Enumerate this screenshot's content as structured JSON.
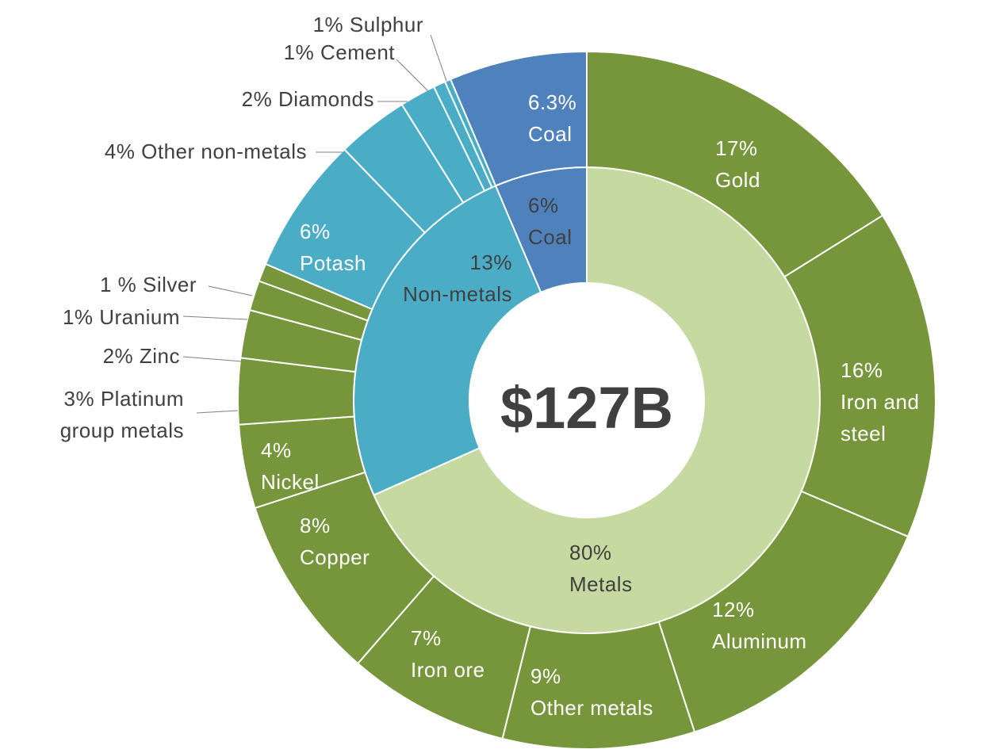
{
  "chart_data": {
    "type": "sunburst",
    "total_label": "$127B",
    "colors": {
      "metals_inner": "#c5d9a0",
      "metals_outer": "#77963b",
      "nonmetals": "#4bacc6",
      "coal": "#4f81bd",
      "separator": "#ffffff"
    },
    "inner": [
      {
        "name": "Metals",
        "value": 80,
        "label": [
          "80%",
          "Metals"
        ]
      },
      {
        "name": "Non-metals",
        "value": 13,
        "label": [
          "13%",
          "Non-metals"
        ]
      },
      {
        "name": "Coal",
        "value": 6,
        "label": [
          "6%",
          "Coal"
        ]
      }
    ],
    "outer": [
      {
        "group": "Coal",
        "name": "Coal",
        "value": 6.3,
        "label": [
          "6.3%",
          "Coal"
        ]
      },
      {
        "group": "Metals",
        "name": "Gold",
        "value": 17,
        "label": [
          "17%",
          "Gold"
        ]
      },
      {
        "group": "Metals",
        "name": "Iron and steel",
        "value": 16,
        "label": [
          "16%",
          "Iron and",
          "steel"
        ]
      },
      {
        "group": "Metals",
        "name": "Aluminum",
        "value": 12,
        "label": [
          "12%",
          "Aluminum"
        ]
      },
      {
        "group": "Metals",
        "name": "Other metals",
        "value": 9,
        "label": [
          "9%",
          "Other metals"
        ]
      },
      {
        "group": "Metals",
        "name": "Iron ore",
        "value": 7,
        "label": [
          "7%",
          "Iron ore"
        ]
      },
      {
        "group": "Metals",
        "name": "Copper",
        "value": 8,
        "label": [
          "8%",
          "Copper"
        ]
      },
      {
        "group": "Metals",
        "name": "Nickel",
        "value": 4,
        "label": [
          "4%",
          "Nickel"
        ]
      },
      {
        "group": "Metals",
        "name": "Platinum group metals",
        "value": 3,
        "label": [
          "3% Platinum",
          "group metals"
        ]
      },
      {
        "group": "Metals",
        "name": "Zinc",
        "value": 2,
        "label": [
          "2% Zinc"
        ]
      },
      {
        "group": "Metals",
        "name": "Uranium",
        "value": 1,
        "label": [
          "1% Uranium"
        ]
      },
      {
        "group": "Metals",
        "name": "Silver",
        "value": 1,
        "label": [
          "1 % Silver"
        ]
      },
      {
        "group": "Non-metals",
        "name": "Potash",
        "value": 6,
        "label": [
          "6%",
          "Potash"
        ]
      },
      {
        "group": "Non-metals",
        "name": "Other non-metals",
        "value": 4,
        "label": [
          "4% Other non-metals"
        ]
      },
      {
        "group": "Non-metals",
        "name": "Diamonds",
        "value": 2,
        "label": [
          "2% Diamonds"
        ]
      },
      {
        "group": "Non-metals",
        "name": "Cement",
        "value": 1,
        "label": [
          "1% Cement"
        ]
      },
      {
        "group": "Non-metals",
        "name": "Sulphur",
        "value": 1,
        "label": [
          "1% Sulphur"
        ]
      }
    ]
  }
}
